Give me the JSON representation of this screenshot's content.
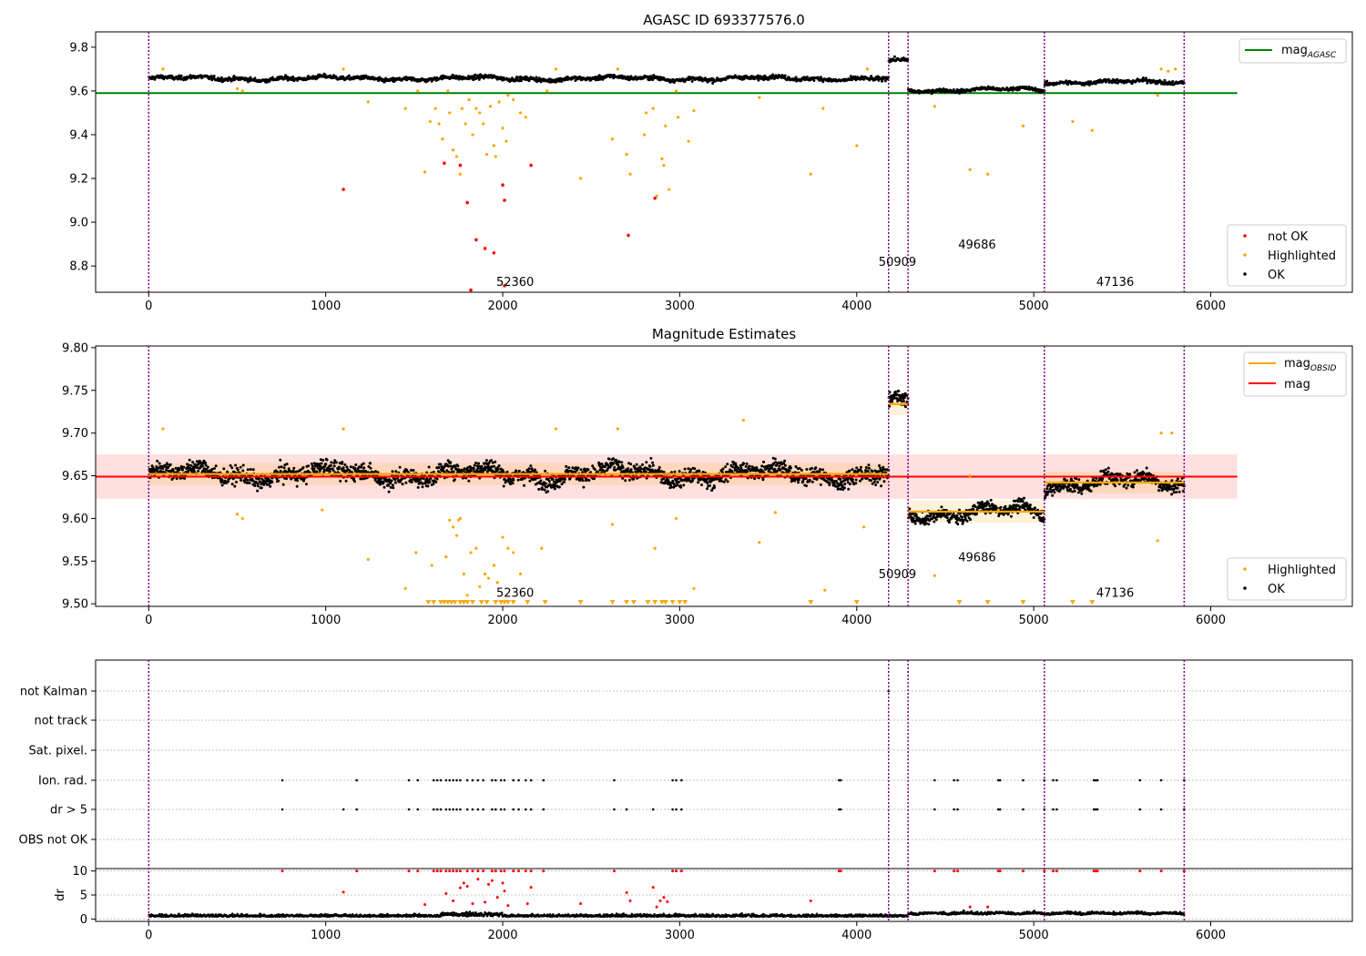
{
  "chart_data": [
    {
      "type": "scatter",
      "title": "AGASC ID 693377576.0",
      "xlim": [
        -300,
        6800
      ],
      "ylim": [
        8.68,
        9.87
      ],
      "xticks": [
        0,
        1000,
        2000,
        3000,
        4000,
        5000,
        6000
      ],
      "yticks": [
        8.8,
        9.0,
        9.2,
        9.4,
        9.6,
        9.8
      ],
      "obs_boundaries": [
        0,
        4180,
        4290,
        5060,
        5850
      ],
      "obs_labels": [
        {
          "text": "52360",
          "x": 2070,
          "y": 8.71
        },
        {
          "text": "50909",
          "x": 4230,
          "y": 8.8
        },
        {
          "text": "49686",
          "x": 4680,
          "y": 8.88
        },
        {
          "text": "47136",
          "x": 5460,
          "y": 8.71
        }
      ],
      "lines": [
        {
          "name": "mag_AGASC",
          "color": "#008000",
          "x": [
            -300,
            6150
          ],
          "y": [
            9.59,
            9.59
          ]
        }
      ],
      "series": [
        {
          "name": "not OK",
          "color": "#ff0000"
        },
        {
          "name": "Highlighted",
          "color": "#ffa500"
        },
        {
          "name": "OK",
          "color": "#000000"
        }
      ],
      "segments": [
        {
          "x": [
            0,
            4180
          ],
          "center": 9.657,
          "spread": 0.013
        },
        {
          "x": [
            4180,
            4290
          ],
          "center": 9.735,
          "spread": 0.012
        },
        {
          "x": [
            4290,
            5060
          ],
          "center": 9.605,
          "spread": 0.011
        },
        {
          "x": [
            5060,
            5850
          ],
          "center": 9.64,
          "spread": 0.013
        }
      ],
      "highlighted_points": [
        [
          80,
          9.7
        ],
        [
          500,
          9.61
        ],
        [
          530,
          9.6
        ],
        [
          1100,
          9.7
        ],
        [
          1240,
          9.55
        ],
        [
          1450,
          9.52
        ],
        [
          1520,
          9.6
        ],
        [
          1560,
          9.23
        ],
        [
          1590,
          9.46
        ],
        [
          1620,
          9.52
        ],
        [
          1640,
          9.45
        ],
        [
          1660,
          9.38
        ],
        [
          1690,
          9.6
        ],
        [
          1700,
          9.5
        ],
        [
          1720,
          9.33
        ],
        [
          1740,
          9.3
        ],
        [
          1760,
          9.22
        ],
        [
          1770,
          9.52
        ],
        [
          1790,
          9.45
        ],
        [
          1810,
          9.56
        ],
        [
          1830,
          9.4
        ],
        [
          1850,
          9.52
        ],
        [
          1870,
          9.5
        ],
        [
          1890,
          9.45
        ],
        [
          1910,
          9.31
        ],
        [
          1930,
          9.53
        ],
        [
          1950,
          9.35
        ],
        [
          1960,
          9.3
        ],
        [
          1980,
          9.55
        ],
        [
          2000,
          9.43
        ],
        [
          2020,
          9.37
        ],
        [
          2030,
          9.58
        ],
        [
          2060,
          9.56
        ],
        [
          2100,
          9.5
        ],
        [
          2130,
          9.48
        ],
        [
          2250,
          9.6
        ],
        [
          2300,
          9.7
        ],
        [
          2440,
          9.2
        ],
        [
          2620,
          9.38
        ],
        [
          2650,
          9.7
        ],
        [
          2700,
          9.31
        ],
        [
          2720,
          9.22
        ],
        [
          2800,
          9.4
        ],
        [
          2810,
          9.5
        ],
        [
          2850,
          9.52
        ],
        [
          2870,
          9.12
        ],
        [
          2900,
          9.29
        ],
        [
          2910,
          9.26
        ],
        [
          2920,
          9.44
        ],
        [
          2940,
          9.15
        ],
        [
          2980,
          9.6
        ],
        [
          2990,
          9.48
        ],
        [
          3050,
          9.37
        ],
        [
          3080,
          9.51
        ],
        [
          3450,
          9.57
        ],
        [
          3740,
          9.22
        ],
        [
          3810,
          9.52
        ],
        [
          4000,
          9.35
        ],
        [
          4060,
          9.7
        ],
        [
          4440,
          9.53
        ],
        [
          4640,
          9.24
        ],
        [
          4740,
          9.22
        ],
        [
          4940,
          9.44
        ],
        [
          5220,
          9.46
        ],
        [
          5330,
          9.42
        ],
        [
          5700,
          9.58
        ],
        [
          5720,
          9.7
        ],
        [
          5760,
          9.69
        ],
        [
          5800,
          9.7
        ]
      ],
      "notok_points": [
        [
          1100,
          9.15
        ],
        [
          1670,
          9.27
        ],
        [
          1760,
          9.26
        ],
        [
          1800,
          9.09
        ],
        [
          1820,
          8.69
        ],
        [
          1850,
          8.92
        ],
        [
          1900,
          8.88
        ],
        [
          1950,
          8.86
        ],
        [
          2000,
          9.17
        ],
        [
          2010,
          9.1
        ],
        [
          2010,
          8.71
        ],
        [
          2160,
          9.26
        ],
        [
          2710,
          8.94
        ],
        [
          2860,
          9.11
        ]
      ]
    },
    {
      "type": "scatter",
      "title": "Magnitude Estimates",
      "xlim": [
        -300,
        6800
      ],
      "ylim": [
        9.497,
        9.802
      ],
      "xticks": [
        0,
        1000,
        2000,
        3000,
        4000,
        5000,
        6000
      ],
      "yticks": [
        9.5,
        9.55,
        9.6,
        9.65,
        9.7,
        9.75,
        9.8
      ],
      "ytick_labels": [
        "9.50",
        "9.55",
        "9.60",
        "9.65",
        "9.70",
        "9.75",
        "9.80"
      ],
      "obs_boundaries": [
        0,
        4180,
        4290,
        5060,
        5850
      ],
      "obs_labels": [
        {
          "text": "52360",
          "x": 2070,
          "y": 9.508
        },
        {
          "text": "50909",
          "x": 4230,
          "y": 9.53
        },
        {
          "text": "49686",
          "x": 4680,
          "y": 9.55
        },
        {
          "text": "47136",
          "x": 5460,
          "y": 9.508
        }
      ],
      "mag": 9.649,
      "mag_band": [
        9.623,
        9.675
      ],
      "mag_obsid_segments": [
        {
          "x": [
            0,
            4180
          ],
          "y": 9.652
        },
        {
          "x": [
            4180,
            4290
          ],
          "y": 9.734
        },
        {
          "x": [
            4290,
            5060
          ],
          "y": 9.608
        },
        {
          "x": [
            5060,
            5850
          ],
          "y": 9.642
        }
      ],
      "series": [
        {
          "name": "mag_OBSID",
          "color": "#ffa500"
        },
        {
          "name": "mag",
          "color": "#ff0000"
        },
        {
          "name": "Highlighted",
          "color": "#ffa500"
        },
        {
          "name": "OK",
          "color": "#000000"
        }
      ],
      "segments": [
        {
          "x": [
            0,
            4180
          ],
          "center": 9.652,
          "spread": 0.014
        },
        {
          "x": [
            4180,
            4290
          ],
          "center": 9.734,
          "spread": 0.012
        },
        {
          "x": [
            4290,
            5060
          ],
          "center": 9.607,
          "spread": 0.01
        },
        {
          "x": [
            5060,
            5850
          ],
          "center": 9.642,
          "spread": 0.013
        }
      ],
      "highlighted_points": [
        [
          80,
          9.705
        ],
        [
          500,
          9.605
        ],
        [
          530,
          9.6
        ],
        [
          980,
          9.61
        ],
        [
          1100,
          9.705
        ],
        [
          1240,
          9.552
        ],
        [
          1450,
          9.518
        ],
        [
          1510,
          9.56
        ],
        [
          1600,
          9.545
        ],
        [
          1680,
          9.555
        ],
        [
          1700,
          9.598
        ],
        [
          1720,
          9.59
        ],
        [
          1740,
          9.58
        ],
        [
          1750,
          9.598
        ],
        [
          1760,
          9.6
        ],
        [
          1780,
          9.535
        ],
        [
          1800,
          9.51
        ],
        [
          1820,
          9.56
        ],
        [
          1850,
          9.565
        ],
        [
          1870,
          9.52
        ],
        [
          1900,
          9.535
        ],
        [
          1920,
          9.53
        ],
        [
          1950,
          9.545
        ],
        [
          1970,
          9.525
        ],
        [
          2000,
          9.578
        ],
        [
          2030,
          9.565
        ],
        [
          2060,
          9.56
        ],
        [
          2100,
          9.535
        ],
        [
          2220,
          9.565
        ],
        [
          2300,
          9.705
        ],
        [
          2620,
          9.593
        ],
        [
          2650,
          9.705
        ],
        [
          2860,
          9.565
        ],
        [
          2980,
          9.6
        ],
        [
          3080,
          9.518
        ],
        [
          3360,
          9.715
        ],
        [
          3450,
          9.572
        ],
        [
          3540,
          9.607
        ],
        [
          3820,
          9.516
        ],
        [
          4040,
          9.59
        ],
        [
          4440,
          9.533
        ],
        [
          4640,
          9.65
        ],
        [
          4800,
          9.61
        ],
        [
          5700,
          9.574
        ],
        [
          5720,
          9.7
        ],
        [
          5780,
          9.7
        ]
      ],
      "clipped_points": [
        1580,
        1610,
        1650,
        1670,
        1690,
        1710,
        1730,
        1760,
        1780,
        1800,
        1830,
        1880,
        1910,
        1960,
        1990,
        2010,
        2030,
        2060,
        2140,
        2240,
        2440,
        2620,
        2700,
        2740,
        2820,
        2860,
        2900,
        2920,
        2960,
        3000,
        3030,
        3740,
        4000,
        4580,
        4740,
        4940,
        5220,
        5330
      ]
    },
    {
      "type": "scatter",
      "title": "",
      "xlim": [
        -300,
        6800
      ],
      "xticks": [
        0,
        1000,
        2000,
        3000,
        4000,
        5000,
        6000
      ],
      "obs_boundaries": [
        0,
        4180,
        4290,
        5060,
        5850
      ],
      "flag_categories": [
        "not Kalman",
        "not track",
        "Sat. pixel.",
        "Ion. rad.",
        "dr > 5",
        "OBS not OK"
      ],
      "flag_points": {
        "not Kalman": [
          4180
        ],
        "not track": [],
        "Sat. pixel.": [],
        "Ion. rad.": [
          755,
          1175,
          1470,
          1520,
          1610,
          1630,
          1650,
          1680,
          1700,
          1720,
          1740,
          1760,
          1800,
          1830,
          1860,
          1890,
          1940,
          1960,
          1990,
          2010,
          2060,
          2090,
          2130,
          2160,
          2230,
          2630,
          2960,
          2980,
          3010,
          3900,
          3910,
          4440,
          4550,
          4570,
          4800,
          4810,
          4940,
          5060,
          5110,
          5130,
          5340,
          5350,
          5360,
          5600,
          5720,
          5850
        ],
        "dr > 5": [
          755,
          1100,
          1175,
          1470,
          1520,
          1610,
          1630,
          1650,
          1680,
          1700,
          1720,
          1740,
          1760,
          1800,
          1830,
          1860,
          1890,
          1940,
          1960,
          1990,
          2010,
          2060,
          2090,
          2130,
          2160,
          2230,
          2630,
          2700,
          2850,
          2960,
          2980,
          3010,
          3900,
          3910,
          4440,
          4550,
          4570,
          4800,
          4810,
          4940,
          5060,
          5110,
          5130,
          5340,
          5350,
          5360,
          5600,
          5720,
          5850
        ],
        "OBS not OK": []
      },
      "dr_ylim": [
        -0.5,
        10.5
      ],
      "dr_yticks": [
        0,
        5,
        10
      ],
      "dr_ylabel": "dr",
      "dr_red_points": [
        [
          755,
          10
        ],
        [
          1100,
          5.6
        ],
        [
          1175,
          10
        ],
        [
          1470,
          10
        ],
        [
          1520,
          10
        ],
        [
          1560,
          3
        ],
        [
          1610,
          10
        ],
        [
          1630,
          10
        ],
        [
          1650,
          10
        ],
        [
          1680,
          10
        ],
        [
          1680,
          5.3
        ],
        [
          1700,
          10
        ],
        [
          1720,
          10
        ],
        [
          1720,
          3.8
        ],
        [
          1740,
          10
        ],
        [
          1760,
          10
        ],
        [
          1760,
          6.5
        ],
        [
          1780,
          7.5
        ],
        [
          1800,
          10
        ],
        [
          1800,
          6.8
        ],
        [
          1830,
          10
        ],
        [
          1830,
          3.2
        ],
        [
          1860,
          10
        ],
        [
          1860,
          8.3
        ],
        [
          1890,
          10
        ],
        [
          1900,
          3.5
        ],
        [
          1920,
          7.2
        ],
        [
          1940,
          10
        ],
        [
          1940,
          8
        ],
        [
          1960,
          10
        ],
        [
          1970,
          4.5
        ],
        [
          1990,
          10
        ],
        [
          2000,
          7.5
        ],
        [
          2010,
          10
        ],
        [
          2010,
          5.8
        ],
        [
          2030,
          2.8
        ],
        [
          2060,
          10
        ],
        [
          2090,
          10
        ],
        [
          2130,
          10
        ],
        [
          2140,
          3.2
        ],
        [
          2160,
          10
        ],
        [
          2160,
          6.6
        ],
        [
          2230,
          10
        ],
        [
          2440,
          3.2
        ],
        [
          2630,
          10
        ],
        [
          2700,
          5.5
        ],
        [
          2720,
          3.8
        ],
        [
          2850,
          6.6
        ],
        [
          2870,
          2.5
        ],
        [
          2890,
          3.8
        ],
        [
          2910,
          4.5
        ],
        [
          2930,
          3.6
        ],
        [
          2960,
          10
        ],
        [
          2980,
          10
        ],
        [
          3010,
          10
        ],
        [
          3740,
          3.8
        ],
        [
          3900,
          10
        ],
        [
          3910,
          10
        ],
        [
          4440,
          10
        ],
        [
          4550,
          10
        ],
        [
          4570,
          10
        ],
        [
          4640,
          2.5
        ],
        [
          4740,
          2.5
        ],
        [
          4800,
          10
        ],
        [
          4810,
          10
        ],
        [
          4940,
          10
        ],
        [
          5060,
          10
        ],
        [
          5110,
          10
        ],
        [
          5130,
          10
        ],
        [
          5340,
          10
        ],
        [
          5350,
          10
        ],
        [
          5360,
          10
        ],
        [
          5600,
          10
        ],
        [
          5720,
          10
        ],
        [
          5850,
          10
        ]
      ]
    }
  ]
}
